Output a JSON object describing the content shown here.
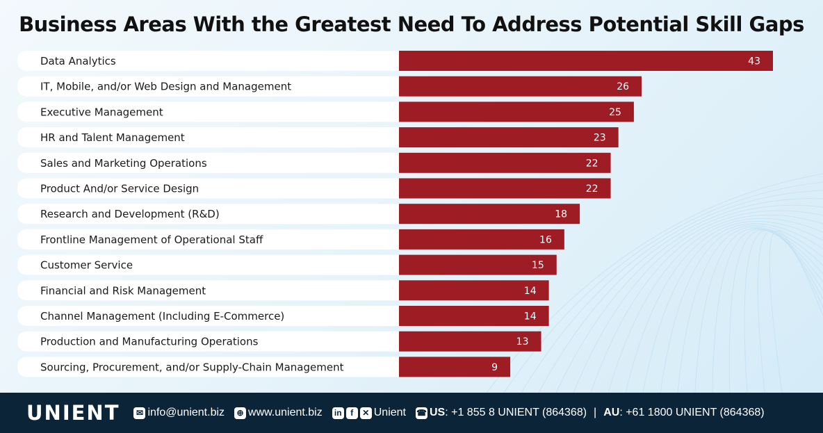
{
  "chart_data": {
    "type": "bar",
    "orientation": "horizontal",
    "title": "Business Areas With the Greatest Need To Address Potential Skill Gaps",
    "categories": [
      "Data Analytics",
      "IT, Mobile, and/or Web Design and Management",
      "Executive Management",
      "HR and Talent Management",
      "Sales and Marketing Operations",
      "Product And/or Service Design",
      "Research and Development (R&D)",
      "Frontline Management of Operational Staff",
      "Customer Service",
      "Financial and Risk Management",
      "Channel Management (Including E-Commerce)",
      "Production and Manufacturing Operations",
      "Sourcing, Procurement, and/or Supply-Chain Management"
    ],
    "values": [
      43,
      26,
      25,
      23,
      22,
      22,
      18,
      16,
      15,
      14,
      14,
      13,
      9
    ],
    "bar_color": "#9e1c24",
    "grid": false
  },
  "footer": {
    "logo": "UNIENT",
    "email": "info@unient.biz",
    "website": "www.unient.biz",
    "social": "Unient",
    "us_label": "US",
    "us_phone": ": +1 855 8 UNIENT (864368)",
    "separator": "|",
    "au_label": "AU",
    "au_phone": ": +61 1800 UNIENT (864368)"
  }
}
